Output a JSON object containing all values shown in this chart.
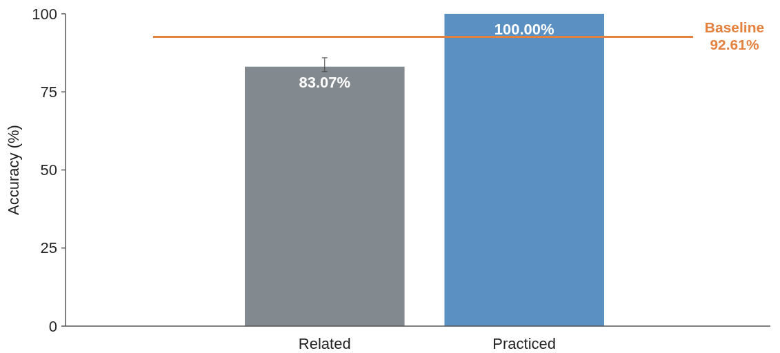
{
  "chart_data": {
    "type": "bar",
    "ylabel": "Accuracy (%)",
    "categories": [
      "Related",
      "Practiced"
    ],
    "values": [
      83.07,
      100
    ],
    "colors": [
      "#838a8f",
      "#5b90c2"
    ],
    "errors": [
      [
        81.5,
        85.9
      ],
      null
    ],
    "value_labels": [
      "83.07%",
      "100.00%"
    ],
    "ylim": [
      0,
      100
    ],
    "yticks": [
      0,
      25,
      50,
      75,
      100
    ],
    "grid": false,
    "ref_lines": [
      {
        "axis": "y",
        "value": 92.61,
        "label": "Baseline 92.61%",
        "color": "#e4813f",
        "line_style": "solid"
      }
    ]
  }
}
